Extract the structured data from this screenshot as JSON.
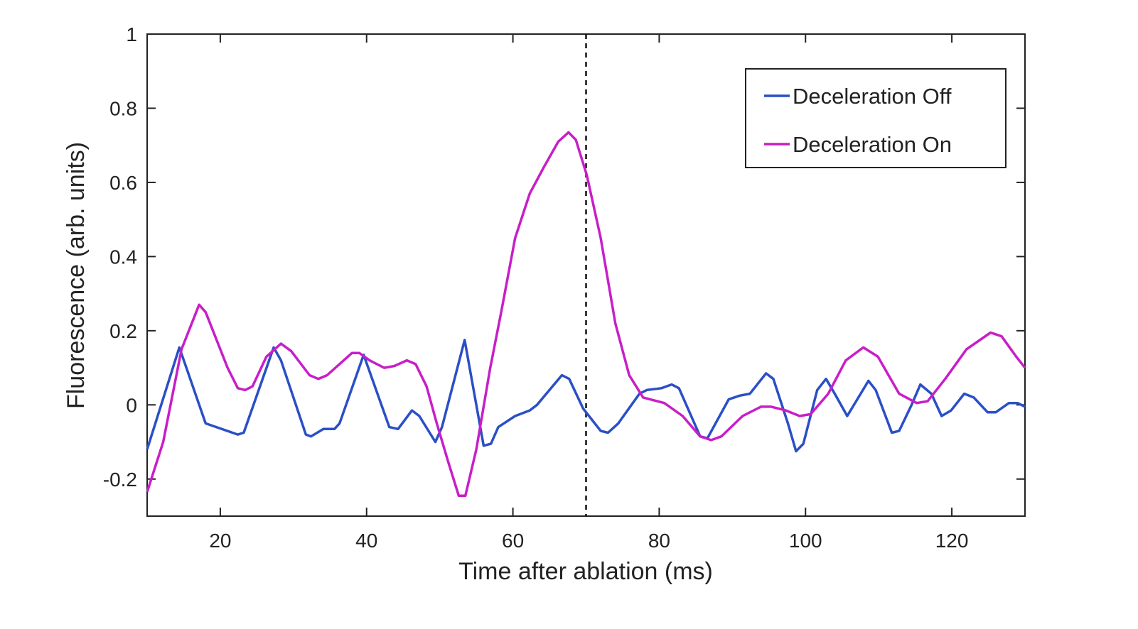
{
  "chart_data": {
    "type": "line",
    "xlabel": "Time after ablation (ms)",
    "ylabel": "Fluorescence (arb. units)",
    "xlim": [
      10,
      130
    ],
    "ylim": [
      -0.3,
      1
    ],
    "xticks": [
      20,
      40,
      60,
      80,
      100,
      120
    ],
    "yticks": [
      -0.2,
      0,
      0.2,
      0.4,
      0.6,
      0.8,
      1
    ],
    "reference_x": 70,
    "legend": "upper right",
    "series": [
      {
        "name": "Deceleration Off",
        "color": "#2a4fc6",
        "x": [
          10,
          14.4,
          18,
          22.4,
          23.2,
          27.3,
          28.3,
          31.7,
          32.4,
          34.1,
          35.6,
          36.3,
          39.6,
          43.1,
          44.3,
          46.2,
          47.2,
          49.4,
          50.3,
          53.4,
          56,
          57,
          58,
          60.3,
          62.3,
          63.3,
          66.7,
          67.7,
          69.6,
          72,
          73,
          74.4,
          77.3,
          78.3,
          80.3,
          81.7,
          82.7,
          85.6,
          86.6,
          89.5,
          91,
          92.4,
          94.6,
          95.6,
          97.6,
          98.7,
          99.7,
          101.6,
          102.8,
          104,
          105.7,
          108.6,
          109.6,
          111.8,
          112.8,
          114.5,
          115.7,
          117.2,
          118.6,
          119.9,
          121.7,
          123,
          124.9,
          126,
          127.8,
          129,
          130
        ],
        "values": [
          -0.12,
          0.155,
          -0.05,
          -0.08,
          -0.075,
          0.155,
          0.12,
          -0.08,
          -0.085,
          -0.065,
          -0.065,
          -0.05,
          0.135,
          -0.06,
          -0.065,
          -0.015,
          -0.03,
          -0.1,
          -0.06,
          0.175,
          -0.11,
          -0.105,
          -0.06,
          -0.03,
          -0.015,
          0,
          0.08,
          0.07,
          -0.01,
          -0.07,
          -0.075,
          -0.05,
          0.03,
          0.04,
          0.045,
          0.055,
          0.045,
          -0.085,
          -0.09,
          0.015,
          0.025,
          0.03,
          0.085,
          0.07,
          -0.05,
          -0.125,
          -0.105,
          0.04,
          0.07,
          0.03,
          -0.03,
          0.065,
          0.04,
          -0.075,
          -0.07,
          0,
          0.055,
          0.03,
          -0.03,
          -0.015,
          0.03,
          0.02,
          -0.02,
          -0.02,
          0.005,
          0.005,
          -0.005
        ]
      },
      {
        "name": "Deceleration On",
        "color": "#c81ec8",
        "x": [
          10,
          12.2,
          14.7,
          17.1,
          18,
          21,
          22.4,
          23.4,
          24.4,
          26.3,
          28.3,
          29.7,
          32.2,
          33.4,
          34.6,
          38,
          39,
          40.4,
          42.4,
          43.8,
          45.5,
          46.7,
          48.2,
          49.6,
          51.1,
          52.6,
          53.5,
          55,
          56.9,
          58.4,
          60.3,
          62.3,
          64.2,
          66.2,
          67.6,
          68.6,
          70.1,
          72,
          74,
          75.9,
          77.8,
          80.7,
          83.2,
          85.6,
          87.1,
          88.5,
          91.4,
          93.9,
          95.3,
          97.3,
          99.2,
          100.7,
          103.1,
          105.5,
          107.9,
          109.9,
          112.8,
          115.2,
          116.7,
          119.1,
          122,
          125.3,
          126.8,
          128.8,
          130
        ],
        "values": [
          -0.235,
          -0.1,
          0.15,
          0.27,
          0.25,
          0.1,
          0.045,
          0.04,
          0.05,
          0.13,
          0.165,
          0.145,
          0.08,
          0.07,
          0.08,
          0.14,
          0.14,
          0.12,
          0.1,
          0.105,
          0.12,
          0.11,
          0.05,
          -0.05,
          -0.15,
          -0.245,
          -0.245,
          -0.12,
          0.1,
          0.25,
          0.45,
          0.57,
          0.64,
          0.71,
          0.735,
          0.715,
          0.62,
          0.45,
          0.22,
          0.08,
          0.02,
          0.005,
          -0.03,
          -0.085,
          -0.095,
          -0.085,
          -0.03,
          -0.005,
          -0.005,
          -0.015,
          -0.03,
          -0.025,
          0.03,
          0.12,
          0.155,
          0.13,
          0.03,
          0.005,
          0.01,
          0.07,
          0.15,
          0.195,
          0.185,
          0.13,
          0.1
        ]
      }
    ]
  }
}
